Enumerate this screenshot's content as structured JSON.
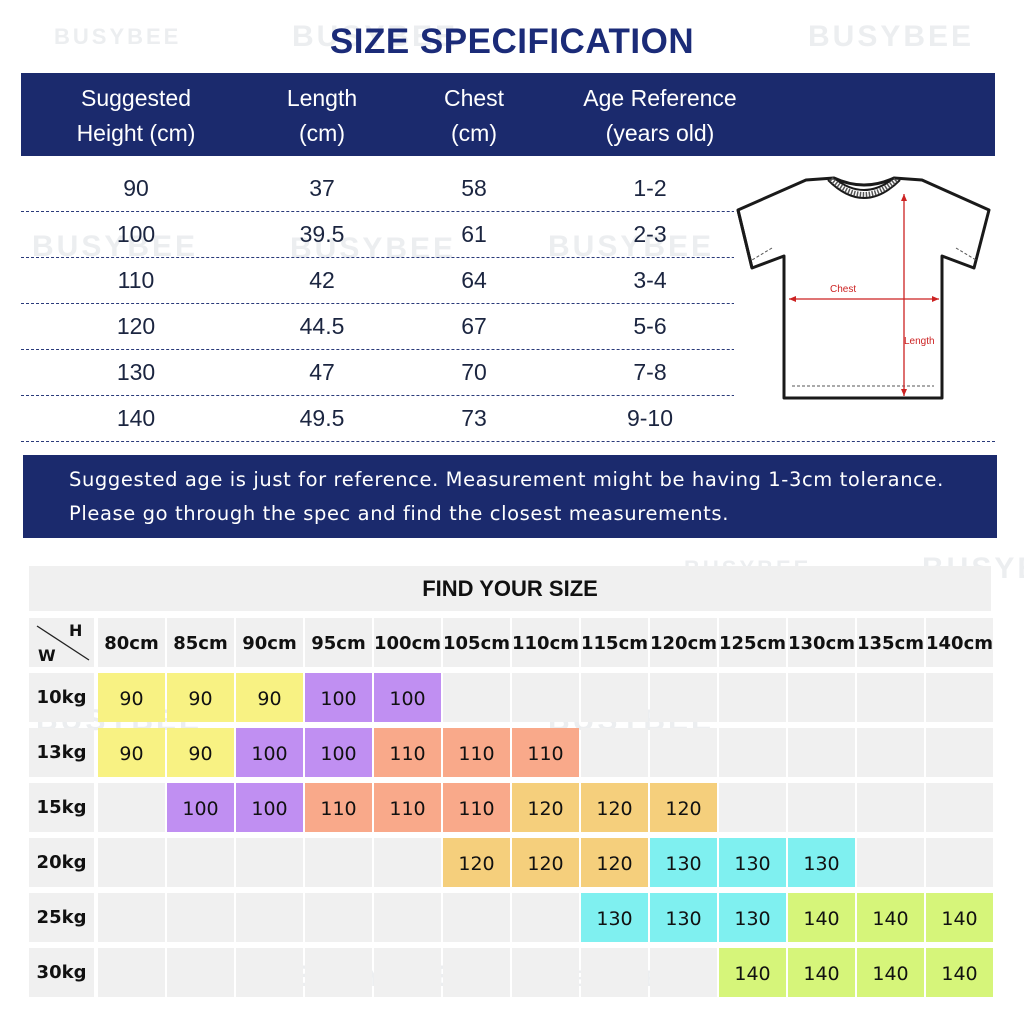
{
  "watermark": "BUSYBEE",
  "title": "SIZE SPECIFICATION",
  "spec_table": {
    "headers": [
      [
        "Suggested",
        "Height  (cm)"
      ],
      [
        "Length",
        "(cm)"
      ],
      [
        "Chest",
        "(cm)"
      ],
      [
        "Age Reference",
        "(years old)"
      ]
    ],
    "rows": [
      [
        "90",
        "37",
        "58",
        "1-2"
      ],
      [
        "100",
        "39.5",
        "61",
        "2-3"
      ],
      [
        "110",
        "42",
        "64",
        "3-4"
      ],
      [
        "120",
        "44.5",
        "67",
        "5-6"
      ],
      [
        "130",
        "47",
        "70",
        "7-8"
      ],
      [
        "140",
        "49.5",
        "73",
        "9-10"
      ]
    ]
  },
  "diagram": {
    "chest_label": "Chest",
    "length_label": "Length"
  },
  "note": [
    "Suggested age is just for reference. Measurement might be having 1-3cm tolerance.",
    "Please go through the spec and find the closest measurements."
  ],
  "find_size": {
    "title": "FIND YOUR SIZE",
    "corner": {
      "height_label": "H",
      "weight_label": "W"
    },
    "heights": [
      "80cm",
      "85cm",
      "90cm",
      "95cm",
      "100cm",
      "105cm",
      "110cm",
      "115cm",
      "120cm",
      "125cm",
      "130cm",
      "135cm",
      "140cm"
    ],
    "weights": [
      "10kg",
      "13kg",
      "15kg",
      "20kg",
      "25kg",
      "30kg"
    ],
    "cells": [
      [
        "90",
        "90",
        "90",
        "100",
        "100",
        "",
        "",
        "",
        "",
        "",
        "",
        "",
        ""
      ],
      [
        "90",
        "90",
        "100",
        "100",
        "110",
        "110",
        "110",
        "",
        "",
        "",
        "",
        "",
        ""
      ],
      [
        "",
        "100",
        "100",
        "110",
        "110",
        "110",
        "120",
        "120",
        "120",
        "",
        "",
        "",
        ""
      ],
      [
        "",
        "",
        "",
        "",
        "",
        "120",
        "120",
        "120",
        "130",
        "130",
        "130",
        "",
        ""
      ],
      [
        "",
        "",
        "",
        "",
        "",
        "",
        "",
        "130",
        "130",
        "130",
        "140",
        "140",
        "140"
      ],
      [
        "",
        "",
        "",
        "",
        "",
        "",
        "",
        "",
        "",
        "140",
        "140",
        "140",
        "140"
      ]
    ],
    "size_colors": {
      "90": "#f8f283",
      "100": "#c08ff2",
      "110": "#f9a98a",
      "120": "#f5cf7c",
      "130": "#7ff0f0",
      "140": "#d6f57a"
    },
    "empty_color": "#f0f0f0"
  }
}
